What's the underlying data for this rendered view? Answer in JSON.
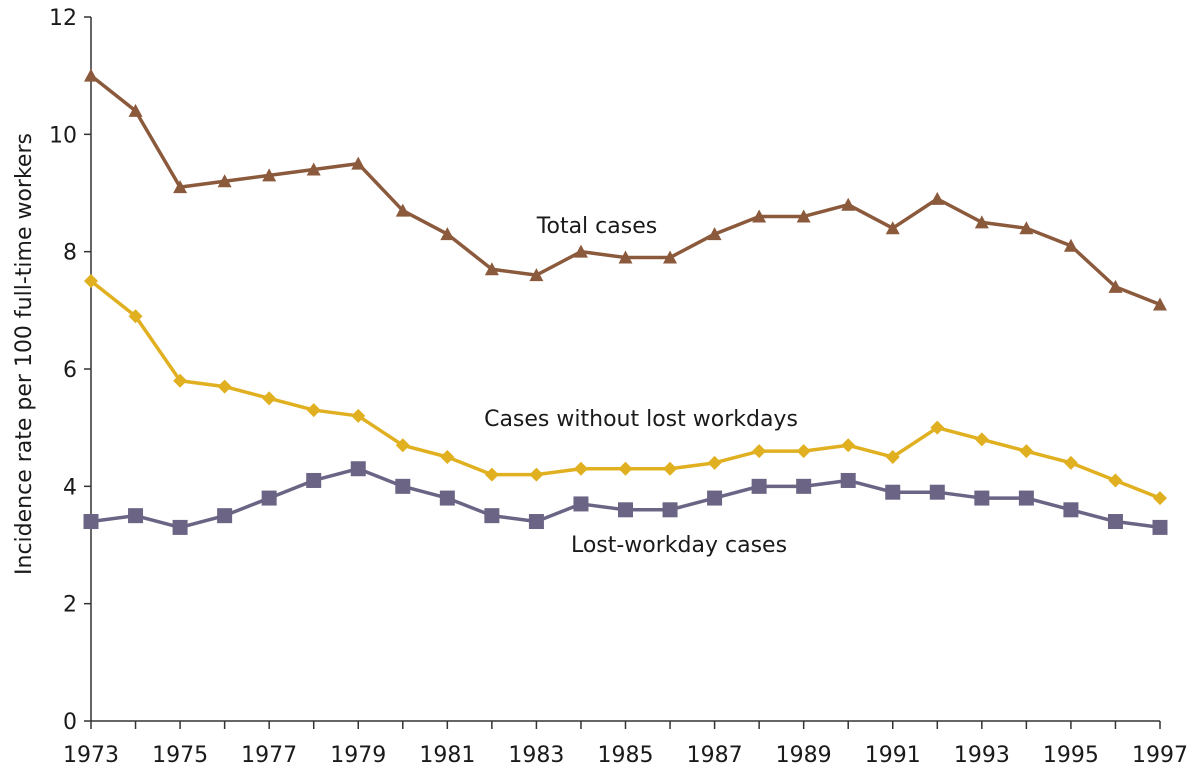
{
  "chart_data": {
    "type": "line",
    "ylabel": "Incidence rate per 100 full-time workers",
    "xlabel": "",
    "x": [
      1973,
      1974,
      1975,
      1976,
      1977,
      1978,
      1979,
      1980,
      1981,
      1982,
      1983,
      1984,
      1985,
      1986,
      1987,
      1988,
      1989,
      1990,
      1991,
      1992,
      1993,
      1994,
      1995,
      1996,
      1997
    ],
    "x_tick_labels": [
      "1973",
      "1975",
      "1977",
      "1979",
      "1981",
      "1983",
      "1985",
      "1987",
      "1989",
      "1991",
      "1993",
      "1995",
      "1997"
    ],
    "y_tick_labels": [
      "0",
      "2",
      "4",
      "6",
      "8",
      "10",
      "12"
    ],
    "xlim": [
      1973,
      1997
    ],
    "ylim": [
      0,
      12
    ],
    "grid": false,
    "series": [
      {
        "name": "Total cases",
        "color": "#8b5a3c",
        "marker": "triangle",
        "values": [
          11.0,
          10.4,
          9.1,
          9.2,
          9.3,
          9.4,
          9.5,
          8.7,
          8.3,
          7.7,
          7.6,
          8.0,
          7.9,
          7.9,
          8.3,
          8.6,
          8.6,
          8.8,
          8.4,
          8.9,
          8.5,
          8.4,
          8.1,
          7.4,
          7.1
        ]
      },
      {
        "name": "Cases without lost workdays",
        "color": "#e0b020",
        "marker": "diamond",
        "values": [
          7.5,
          6.9,
          5.8,
          5.7,
          5.5,
          5.3,
          5.2,
          4.7,
          4.5,
          4.2,
          4.2,
          4.3,
          4.3,
          4.3,
          4.4,
          4.6,
          4.6,
          4.7,
          4.5,
          5.0,
          4.8,
          4.6,
          4.4,
          4.1,
          3.8
        ]
      },
      {
        "name": "Lost-workday cases",
        "color": "#6b6484",
        "marker": "square",
        "values": [
          3.4,
          3.5,
          3.3,
          3.5,
          3.8,
          4.1,
          4.3,
          4.0,
          3.8,
          3.5,
          3.4,
          3.7,
          3.6,
          3.6,
          3.8,
          4.0,
          4.0,
          4.1,
          3.9,
          3.9,
          3.8,
          3.8,
          3.6,
          3.4,
          3.3
        ]
      }
    ]
  }
}
